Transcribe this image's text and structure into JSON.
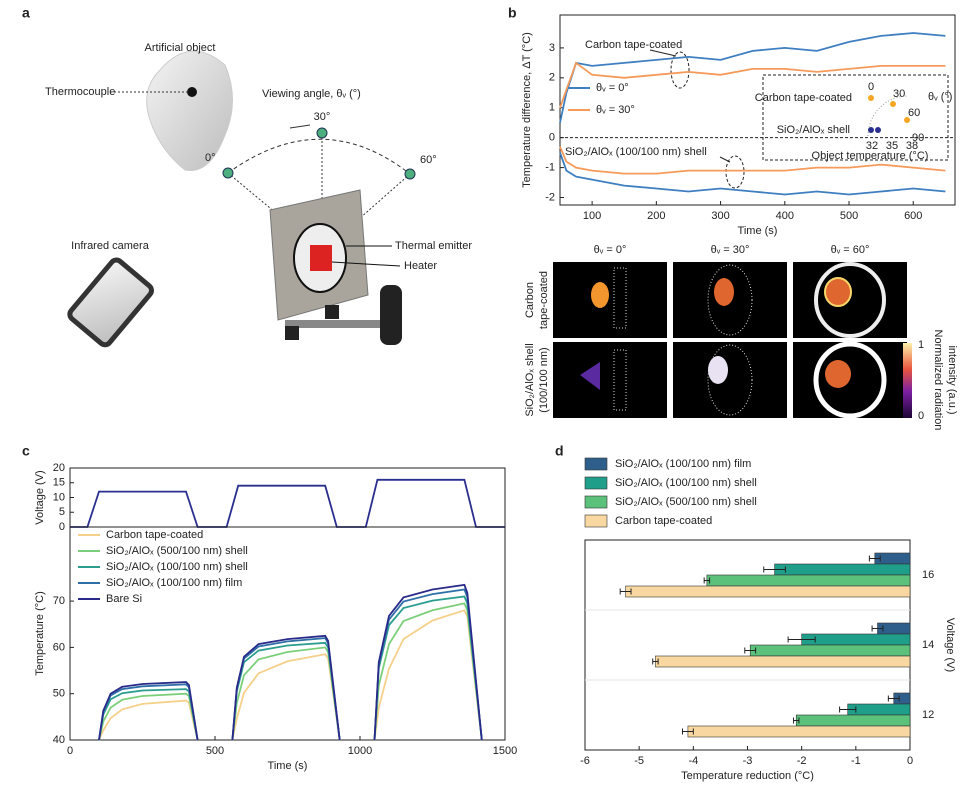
{
  "panel_labels": [
    "a",
    "b",
    "c",
    "d"
  ],
  "diagram": {
    "object_label": "Artificial object",
    "thermocouple": "Thermocouple",
    "viewing_angle": "Viewing angle, θᵥ (°)",
    "angles": [
      "0°",
      "30°",
      "60°"
    ],
    "camera": "Infrared camera",
    "emitter": "Thermal emitter",
    "heater": "Heater"
  },
  "images": {
    "columns": [
      "θᵥ = 0°",
      "θᵥ = 30°",
      "θᵥ = 60°"
    ],
    "rows": [
      [
        "Carbon",
        "tape-coated"
      ],
      [
        "SiO₂/AlOₓ shell",
        "(100/100 nm)"
      ]
    ],
    "colorbar_ticks": [
      1,
      0
    ],
    "colorbar_label": [
      "Normalized radiation",
      "intensity (a.u.)"
    ]
  },
  "chart_data": [
    {
      "type": "line",
      "xlabel": "Time (s)",
      "ylabel": "Temperature difference, ΔT (°C)",
      "xlim": [
        50,
        665
      ],
      "ylim": [
        -2.25,
        4.1
      ],
      "xticks": [
        100,
        200,
        300,
        400,
        500,
        600
      ],
      "yticks": [
        -2,
        -1,
        0,
        1,
        2,
        3
      ],
      "legend": "center left",
      "x": [
        50,
        60,
        75,
        100,
        150,
        200,
        250,
        300,
        350,
        400,
        450,
        500,
        550,
        600,
        650
      ],
      "series": [
        {
          "name": "θᵥ = 0°",
          "color": "#3f7fc1",
          "values": [
            0.5,
            1.5,
            2.5,
            2.4,
            2.5,
            2.6,
            2.7,
            2.6,
            2.9,
            3.0,
            2.9,
            3.2,
            3.4,
            3.5,
            3.4
          ]
        },
        {
          "name": "θᵥ = 30°",
          "color": "#f59a5b",
          "values": [
            1.0,
            1.6,
            2.5,
            2.1,
            2.0,
            2.1,
            2.2,
            2.1,
            2.3,
            2.3,
            2.2,
            2.3,
            2.4,
            2.4,
            2.4
          ]
        },
        {
          "color": "#3f7fc1",
          "values": [
            -0.5,
            -1.1,
            -1.3,
            -1.4,
            -1.6,
            -1.7,
            -1.8,
            -1.7,
            -1.8,
            -1.9,
            -1.8,
            -1.9,
            -1.8,
            -1.7,
            -1.8
          ]
        },
        {
          "color": "#f59a5b",
          "values": [
            -0.3,
            -0.8,
            -1.0,
            -1.1,
            -1.2,
            -1.2,
            -1.1,
            -1.1,
            -1.1,
            -1.1,
            -1.0,
            -1.0,
            -0.9,
            -1.0,
            -1.1
          ]
        }
      ],
      "annotations": [
        "Carbon tape-coated",
        "SiO₂/AlOₓ (100/100 nm) shell"
      ],
      "inset": {
        "labels": [
          "Carbon tape-coated",
          "SiO₂/AlOₓ shell"
        ],
        "ylabel": "θᵥ (°)",
        "xlabel": "Object temperature (°C)",
        "angle_ticks": [
          0,
          30,
          60,
          90
        ],
        "temp_ticks": [
          32,
          35,
          38
        ]
      }
    },
    {
      "type": "line",
      "ylabel": "Voltage (V)",
      "xlim": [
        0,
        1500
      ],
      "ylim": [
        0,
        20
      ],
      "yticks": [
        0,
        5,
        10,
        15,
        20
      ],
      "x": [
        0,
        60,
        100,
        400,
        440,
        540,
        580,
        880,
        920,
        1020,
        1060,
        1360,
        1400,
        1500
      ],
      "series": [
        {
          "color": "#2a2f8f",
          "values": [
            0,
            0,
            12,
            12,
            0,
            0,
            14,
            14,
            0,
            0,
            16,
            16,
            0,
            0
          ]
        }
      ]
    },
    {
      "type": "line",
      "xlabel": "Time (s)",
      "ylabel": "Temperature (°C)",
      "xlim": [
        0,
        1500
      ],
      "ylim": [
        40,
        86
      ],
      "xticks": [
        0,
        500,
        1000,
        1500
      ],
      "yticks": [
        40,
        50,
        60,
        70
      ],
      "legend": "upper left",
      "x": [
        100,
        115,
        140,
        180,
        250,
        400,
        410,
        440,
        480,
        560,
        575,
        600,
        650,
        750,
        880,
        890,
        930,
        990,
        1050,
        1065,
        1100,
        1150,
        1250,
        1360,
        1370,
        1420
      ],
      "series": [
        {
          "name": "Carbon tape-coated",
          "color": "#f5d08a",
          "values": [
            40,
            42.1,
            44.7,
            46.6,
            47.8,
            48.5,
            48.1,
            40,
            null,
            40,
            44.6,
            50.2,
            54.4,
            57,
            58.5,
            57.6,
            40,
            null,
            40,
            47,
            55.4,
            61.8,
            65.8,
            68,
            66.6,
            40
          ]
        },
        {
          "name": "SiO₂/AlOₓ (500/100 nm) shell",
          "color": "#7ccf7a",
          "values": [
            40,
            44,
            47,
            48.7,
            49.5,
            50,
            49.5,
            40,
            null,
            40,
            48,
            54,
            57.4,
            59,
            60,
            59,
            40,
            null,
            40,
            51.8,
            60.7,
            65.7,
            68,
            69.5,
            68,
            40
          ]
        },
        {
          "name": "SiO₂/AlOₓ (100/100 nm) shell",
          "color": "#2a9d8f",
          "values": [
            40,
            45.5,
            48.8,
            50.1,
            50.7,
            51,
            50.5,
            40,
            null,
            40,
            50.5,
            56.8,
            59.3,
            60.4,
            61,
            60,
            40,
            null,
            40,
            55.5,
            64.8,
            68.5,
            70.1,
            71,
            69.5,
            40
          ]
        },
        {
          "name": "SiO₂/AlOₓ (100/100 nm) film",
          "color": "#2f6fa8",
          "values": [
            40,
            46,
            49.6,
            51,
            51.6,
            52,
            51.4,
            40,
            null,
            40,
            51,
            57.6,
            60.2,
            61.3,
            62,
            60.9,
            40,
            null,
            40,
            56.3,
            66,
            69.9,
            71.5,
            72.5,
            70.9,
            40
          ]
        },
        {
          "name": "Bare Si",
          "color": "#2a2a8a",
          "values": [
            40,
            46.3,
            50,
            51.5,
            52.1,
            52.5,
            51.9,
            40,
            null,
            40,
            51.3,
            58,
            60.7,
            61.8,
            62.5,
            61.4,
            40,
            null,
            40,
            56.8,
            66.8,
            70.8,
            72.5,
            73.5,
            71.8,
            40
          ]
        }
      ]
    },
    {
      "type": "bar",
      "orientation": "horizontal",
      "xlabel": "Temperature reduction (°C)",
      "ylabel": "Voltage (V)",
      "xlim": [
        -6,
        0
      ],
      "xticks": [
        -6,
        -5,
        -4,
        -3,
        -2,
        -1,
        0
      ],
      "categories": [
        12,
        14,
        16
      ],
      "legend": "outside top",
      "series": [
        {
          "name": "SiO₂/AlOₓ (100/100 nm) film",
          "color": "#2e5f8a",
          "values": [
            -0.3,
            -0.6,
            -0.65
          ],
          "errors": [
            0.1,
            0.1,
            0.1
          ]
        },
        {
          "name": "SiO₂/AlOₓ (100/100 nm) shell",
          "color": "#1f9e89",
          "values": [
            -1.15,
            -2.0,
            -2.5
          ],
          "errors": [
            0.15,
            0.25,
            0.2
          ]
        },
        {
          "name": "SiO₂/AlOₓ (500/100 nm) shell",
          "color": "#5cc17a",
          "values": [
            -2.1,
            -2.95,
            -3.75
          ],
          "errors": [
            0.05,
            0.1,
            0.05
          ]
        },
        {
          "name": "Carbon tape-coated",
          "color": "#f8d8a0",
          "values": [
            -4.1,
            -4.7,
            -5.25
          ],
          "errors": [
            0.1,
            0.05,
            0.1
          ]
        }
      ]
    }
  ]
}
